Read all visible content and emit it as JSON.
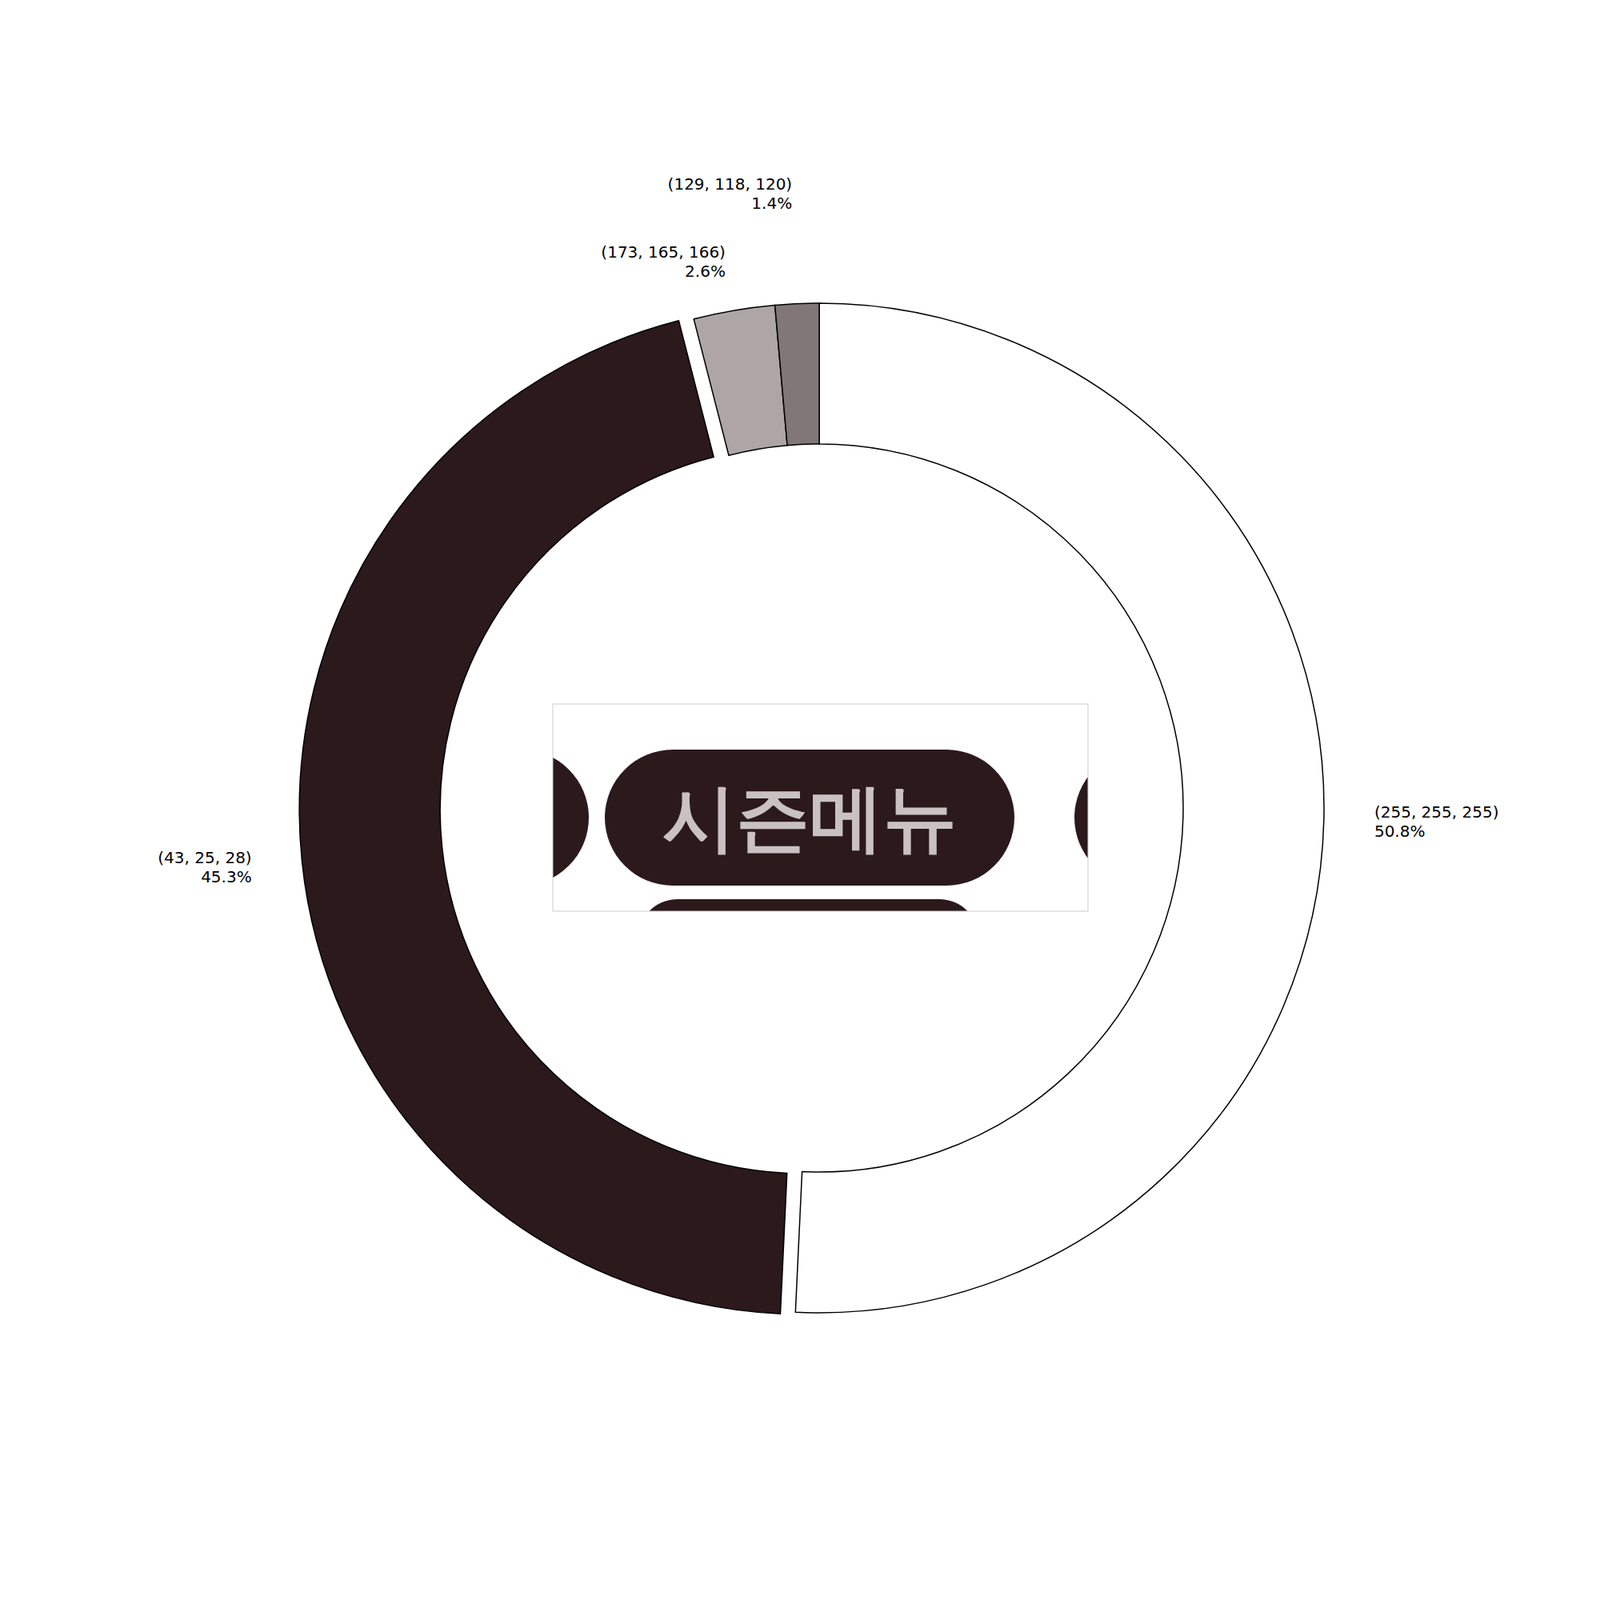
{
  "chart_data": {
    "type": "donut",
    "categories": [
      "(255, 255, 255)",
      "(43, 25, 28)",
      "(173, 165, 166)",
      "(129, 118, 120)"
    ],
    "values": [
      50.8,
      45.3,
      2.6,
      1.4
    ],
    "value_labels": [
      "50.8%",
      "45.3%",
      "2.6%",
      "1.4%"
    ],
    "colors": [
      "#ffffff",
      "#2b191c",
      "#ada5a6",
      "#817678"
    ],
    "data_labels": true,
    "annotations": [
      "시즌메뉴"
    ]
  }
}
